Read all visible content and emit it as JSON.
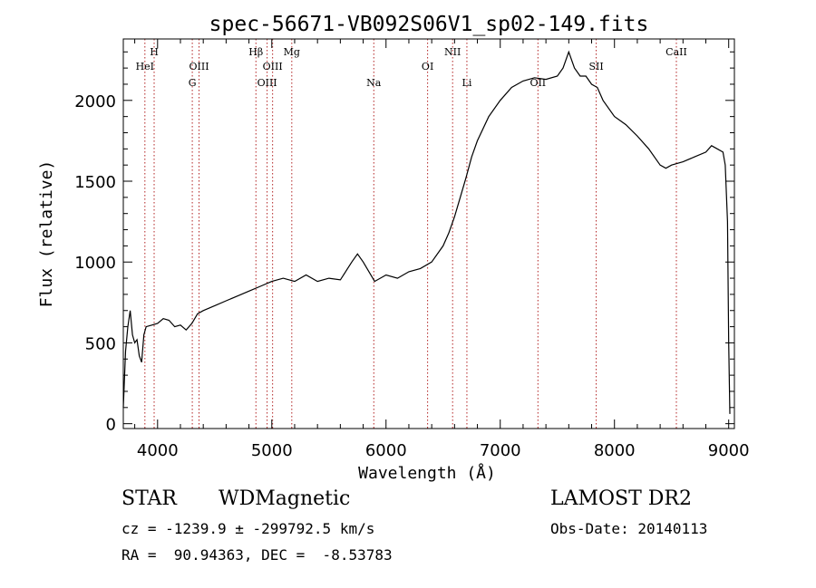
{
  "chart_data": {
    "type": "line",
    "title": "spec-56671-VB092S06V1_sp02-149.fits",
    "xlabel": "Wavelength (Å)",
    "ylabel": "Flux (relative)",
    "xlim": [
      3700,
      9050
    ],
    "ylim": [
      -30,
      2380
    ],
    "x_ticks": [
      4000,
      5000,
      6000,
      7000,
      8000,
      9000
    ],
    "x_tick_labels": [
      "4000",
      "5000",
      "6000",
      "7000",
      "8000",
      "9000"
    ],
    "y_ticks": [
      0,
      500,
      1000,
      1500,
      2000
    ],
    "y_tick_labels": [
      "0",
      "500",
      "1000",
      "1500",
      "2000"
    ],
    "grid": false,
    "line_color": "#000000",
    "marker_color": "#b22222",
    "series": [
      {
        "x": [
          3700,
          3720,
          3740,
          3760,
          3780,
          3800,
          3820,
          3840,
          3860,
          3880,
          3900,
          3950,
          4000,
          4050,
          4100,
          4150,
          4200,
          4250,
          4300,
          4350,
          4400,
          4500,
          4600,
          4700,
          4800,
          4900,
          5000,
          5100,
          5200,
          5300,
          5400,
          5500,
          5600,
          5700,
          5750,
          5800,
          5900,
          6000,
          6100,
          6200,
          6300,
          6400,
          6500,
          6550,
          6600,
          6650,
          6700,
          6750,
          6800,
          6900,
          7000,
          7100,
          7200,
          7300,
          7400,
          7500,
          7550,
          7600,
          7650,
          7700,
          7750,
          7800,
          7850,
          7900,
          8000,
          8100,
          8200,
          8300,
          8400,
          8450,
          8500,
          8600,
          8700,
          8800,
          8850,
          8900,
          8950,
          8970,
          8990,
          9000,
          9010
        ],
        "y": [
          100,
          450,
          600,
          700,
          550,
          500,
          520,
          420,
          380,
          550,
          600,
          610,
          620,
          650,
          640,
          600,
          610,
          580,
          620,
          680,
          700,
          730,
          760,
          790,
          820,
          850,
          880,
          900,
          880,
          920,
          880,
          900,
          890,
          1000,
          1050,
          1000,
          880,
          920,
          900,
          940,
          960,
          1000,
          1100,
          1180,
          1280,
          1400,
          1520,
          1650,
          1750,
          1900,
          2000,
          2080,
          2120,
          2140,
          2130,
          2150,
          2200,
          2300,
          2200,
          2150,
          2150,
          2100,
          2080,
          2000,
          1900,
          1850,
          1780,
          1700,
          1600,
          1580,
          1600,
          1620,
          1650,
          1680,
          1720,
          1700,
          1680,
          1600,
          1250,
          500,
          60
        ]
      }
    ],
    "lines": [
      {
        "label": "HeI",
        "x": 3889,
        "row": 2
      },
      {
        "label": "H",
        "x": 3970,
        "row": 1
      },
      {
        "label": "OIII",
        "x": 4363,
        "row": 2
      },
      {
        "label": "G",
        "x": 4304,
        "row": 3
      },
      {
        "label": "Hβ",
        "x": 4861,
        "row": 1
      },
      {
        "label": "OIII",
        "x": 4959,
        "row": 3
      },
      {
        "label": "OIII",
        "x": 5007,
        "row": 2
      },
      {
        "label": "Mg",
        "x": 5175,
        "row": 1
      },
      {
        "label": "Na",
        "x": 5893,
        "row": 3
      },
      {
        "label": "OI",
        "x": 6364,
        "row": 2
      },
      {
        "label": "NII",
        "x": 6583,
        "row": 1
      },
      {
        "label": "Li",
        "x": 6708,
        "row": 3
      },
      {
        "label": "OII",
        "x": 7330,
        "row": 3
      },
      {
        "label": "SII",
        "x": 7840,
        "row": 2
      },
      {
        "label": "CaII",
        "x": 8542,
        "row": 1
      }
    ]
  },
  "info": {
    "object_class": "STAR",
    "subclass": "WDMagnetic",
    "survey": "LAMOST DR2",
    "cz_line": "cz = -1239.9 ± -299792.5 km/s",
    "obs_date": "Obs-Date: 20140113",
    "coords": "RA =  90.94363, DEC =  -8.53783"
  }
}
